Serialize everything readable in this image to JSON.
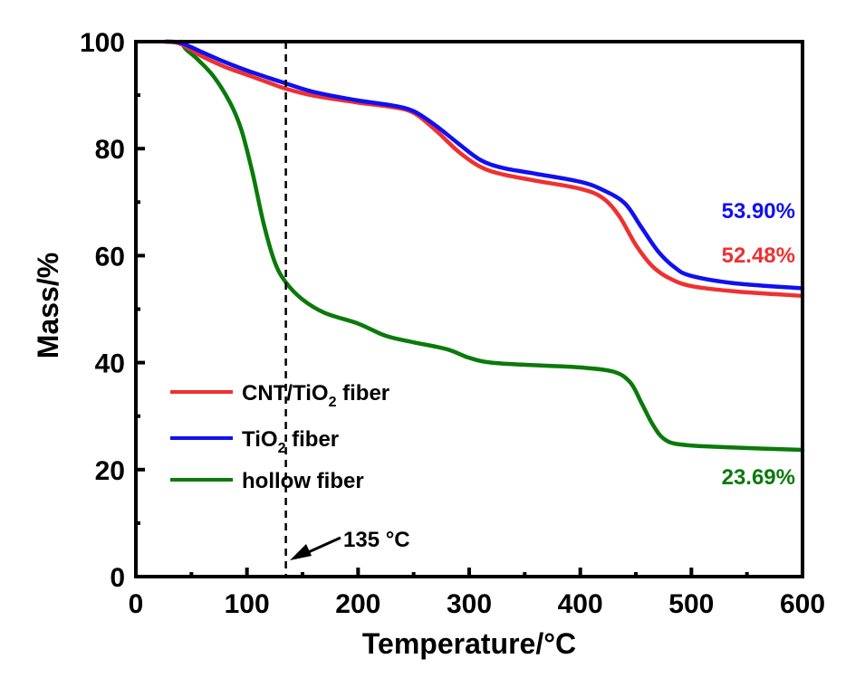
{
  "chart_data": {
    "type": "line",
    "title": "",
    "xlabel": "Temperature/°C",
    "ylabel": "Mass/%",
    "xlim": [
      0,
      600
    ],
    "ylim": [
      0,
      100
    ],
    "xticks": [
      0,
      100,
      200,
      300,
      400,
      500,
      600
    ],
    "yticks": [
      0,
      20,
      40,
      60,
      80,
      100
    ],
    "grid": false,
    "legend_position": "lower-left",
    "series": [
      {
        "name": "CNT/TiO2 fiber",
        "legend_main": "CNT/TiO",
        "legend_sub": "2",
        "legend_tail": " fiber",
        "color": "#f03030",
        "points": [
          [
            27,
            100
          ],
          [
            40,
            99.6
          ],
          [
            60,
            97.2
          ],
          [
            80,
            95.3
          ],
          [
            100,
            93.8
          ],
          [
            120,
            92.3
          ],
          [
            135,
            91.2
          ],
          [
            160,
            89.9
          ],
          [
            200,
            88.6
          ],
          [
            230,
            87.8
          ],
          [
            250,
            86.7
          ],
          [
            270,
            83.4
          ],
          [
            290,
            79.5
          ],
          [
            310,
            76.6
          ],
          [
            330,
            75.2
          ],
          [
            360,
            74.0
          ],
          [
            400,
            72.5
          ],
          [
            420,
            70.8
          ],
          [
            435,
            67.4
          ],
          [
            450,
            62.0
          ],
          [
            465,
            58.0
          ],
          [
            480,
            55.8
          ],
          [
            500,
            54.3
          ],
          [
            540,
            53.3
          ],
          [
            600,
            52.48
          ]
        ]
      },
      {
        "name": "TiO2 fiber",
        "legend_main": "TiO",
        "legend_sub": "2",
        "legend_tail": " fiber",
        "color": "#1010f0",
        "points": [
          [
            27,
            100
          ],
          [
            40,
            99.8
          ],
          [
            60,
            98.0
          ],
          [
            80,
            96.2
          ],
          [
            100,
            94.6
          ],
          [
            120,
            93.2
          ],
          [
            135,
            92.2
          ],
          [
            160,
            90.6
          ],
          [
            200,
            89.0
          ],
          [
            230,
            88.1
          ],
          [
            250,
            87.0
          ],
          [
            270,
            84.3
          ],
          [
            290,
            81.0
          ],
          [
            310,
            77.9
          ],
          [
            330,
            76.4
          ],
          [
            360,
            75.3
          ],
          [
            400,
            73.8
          ],
          [
            420,
            72.3
          ],
          [
            440,
            69.8
          ],
          [
            455,
            65.3
          ],
          [
            470,
            60.8
          ],
          [
            485,
            57.8
          ],
          [
            500,
            56.2
          ],
          [
            540,
            54.8
          ],
          [
            600,
            53.9
          ]
        ]
      },
      {
        "name": "hollow fiber",
        "legend_main": "hollow fiber",
        "legend_sub": "",
        "legend_tail": "",
        "color": "#0a7a0a",
        "points": [
          [
            41,
            100
          ],
          [
            45,
            98.6
          ],
          [
            55,
            96.8
          ],
          [
            70,
            93.5
          ],
          [
            85,
            88.5
          ],
          [
            95,
            83.5
          ],
          [
            105,
            75.5
          ],
          [
            115,
            66.0
          ],
          [
            125,
            58.8
          ],
          [
            135,
            55.0
          ],
          [
            150,
            51.8
          ],
          [
            170,
            49.3
          ],
          [
            200,
            47.3
          ],
          [
            225,
            45.0
          ],
          [
            250,
            43.8
          ],
          [
            280,
            42.5
          ],
          [
            300,
            40.9
          ],
          [
            320,
            40.0
          ],
          [
            360,
            39.5
          ],
          [
            400,
            39.1
          ],
          [
            430,
            38.3
          ],
          [
            445,
            36.3
          ],
          [
            455,
            32.5
          ],
          [
            465,
            28.5
          ],
          [
            475,
            25.8
          ],
          [
            490,
            24.7
          ],
          [
            530,
            24.2
          ],
          [
            600,
            23.69
          ]
        ]
      }
    ],
    "annotations": [
      {
        "text": "53.90%",
        "color": "#1010f0",
        "series": "TiO2 fiber"
      },
      {
        "text": "52.48%",
        "color": "#f03030",
        "series": "CNT/TiO2 fiber"
      },
      {
        "text": "23.69%",
        "color": "#0a7a0a",
        "series": "hollow fiber"
      }
    ],
    "vline": {
      "x": 135,
      "style": "dashed",
      "label": "135 °C"
    }
  }
}
